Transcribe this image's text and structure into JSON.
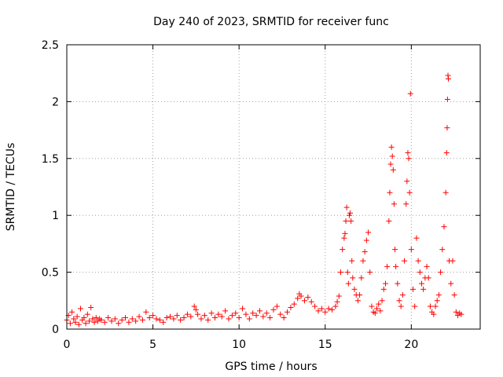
{
  "chart_data": {
    "type": "scatter",
    "title": "Day 240 of 2023, SRMTID for receiver func",
    "xlabel": "GPS time / hours",
    "ylabel": "SRMTID / TECUs",
    "xlim": [
      0,
      24
    ],
    "ylim": [
      0,
      2.5
    ],
    "xticks": [
      0,
      5,
      10,
      15,
      20
    ],
    "xtick_labels": [
      "0",
      "5",
      "10",
      "15",
      "20"
    ],
    "yticks": [
      0,
      0.5,
      1,
      1.5,
      2,
      2.5
    ],
    "ytick_labels": [
      "0",
      "0.5",
      "1",
      "1.5",
      "2",
      "2.5"
    ],
    "grid": true,
    "marker": "plus",
    "series": [
      {
        "name": "SRMTID",
        "color": "#ff0000",
        "points": [
          [
            0.0,
            0.08
          ],
          [
            0.1,
            0.12
          ],
          [
            0.2,
            0.05
          ],
          [
            0.3,
            0.15
          ],
          [
            0.4,
            0.09
          ],
          [
            0.5,
            0.06
          ],
          [
            0.6,
            0.11
          ],
          [
            0.7,
            0.04
          ],
          [
            0.8,
            0.18
          ],
          [
            0.9,
            0.08
          ],
          [
            1.0,
            0.1
          ],
          [
            1.1,
            0.05
          ],
          [
            1.2,
            0.13
          ],
          [
            1.3,
            0.07
          ],
          [
            1.4,
            0.19
          ],
          [
            1.5,
            0.09
          ],
          [
            1.6,
            0.06
          ],
          [
            1.7,
            0.1
          ],
          [
            1.8,
            0.07
          ],
          [
            1.9,
            0.09
          ],
          [
            2.0,
            0.08
          ],
          [
            2.2,
            0.06
          ],
          [
            2.4,
            0.1
          ],
          [
            2.6,
            0.07
          ],
          [
            2.8,
            0.09
          ],
          [
            3.0,
            0.05
          ],
          [
            3.2,
            0.08
          ],
          [
            3.4,
            0.1
          ],
          [
            3.6,
            0.06
          ],
          [
            3.8,
            0.09
          ],
          [
            4.0,
            0.07
          ],
          [
            4.2,
            0.11
          ],
          [
            4.4,
            0.08
          ],
          [
            4.6,
            0.15
          ],
          [
            4.8,
            0.1
          ],
          [
            5.0,
            0.12
          ],
          [
            5.2,
            0.09
          ],
          [
            5.4,
            0.08
          ],
          [
            5.6,
            0.06
          ],
          [
            5.8,
            0.1
          ],
          [
            6.0,
            0.11
          ],
          [
            6.2,
            0.09
          ],
          [
            6.4,
            0.12
          ],
          [
            6.6,
            0.08
          ],
          [
            6.8,
            0.1
          ],
          [
            7.0,
            0.13
          ],
          [
            7.2,
            0.11
          ],
          [
            7.4,
            0.2
          ],
          [
            7.5,
            0.17
          ],
          [
            7.6,
            0.13
          ],
          [
            7.8,
            0.09
          ],
          [
            8.0,
            0.12
          ],
          [
            8.2,
            0.08
          ],
          [
            8.4,
            0.14
          ],
          [
            8.6,
            0.1
          ],
          [
            8.8,
            0.13
          ],
          [
            9.0,
            0.11
          ],
          [
            9.2,
            0.16
          ],
          [
            9.4,
            0.09
          ],
          [
            9.6,
            0.12
          ],
          [
            9.8,
            0.14
          ],
          [
            10.0,
            0.1
          ],
          [
            10.2,
            0.18
          ],
          [
            10.4,
            0.13
          ],
          [
            10.6,
            0.09
          ],
          [
            10.8,
            0.14
          ],
          [
            11.0,
            0.12
          ],
          [
            11.2,
            0.16
          ],
          [
            11.4,
            0.11
          ],
          [
            11.6,
            0.14
          ],
          [
            11.8,
            0.1
          ],
          [
            12.0,
            0.17
          ],
          [
            12.2,
            0.2
          ],
          [
            12.4,
            0.13
          ],
          [
            12.6,
            0.1
          ],
          [
            12.8,
            0.15
          ],
          [
            13.0,
            0.19
          ],
          [
            13.2,
            0.22
          ],
          [
            13.4,
            0.27
          ],
          [
            13.5,
            0.31
          ],
          [
            13.6,
            0.29
          ],
          [
            13.8,
            0.25
          ],
          [
            14.0,
            0.28
          ],
          [
            14.2,
            0.24
          ],
          [
            14.4,
            0.2
          ],
          [
            14.6,
            0.16
          ],
          [
            14.8,
            0.18
          ],
          [
            15.0,
            0.15
          ],
          [
            15.2,
            0.18
          ],
          [
            15.4,
            0.17
          ],
          [
            15.6,
            0.2
          ],
          [
            15.7,
            0.24
          ],
          [
            15.8,
            0.29
          ],
          [
            15.9,
            0.5
          ],
          [
            16.0,
            0.7
          ],
          [
            16.1,
            0.8
          ],
          [
            16.15,
            0.84
          ],
          [
            16.2,
            0.95
          ],
          [
            16.25,
            1.07
          ],
          [
            16.3,
            0.5
          ],
          [
            16.35,
            0.4
          ],
          [
            16.4,
            1.0
          ],
          [
            16.45,
            1.02
          ],
          [
            16.5,
            0.95
          ],
          [
            16.55,
            0.6
          ],
          [
            16.6,
            0.45
          ],
          [
            16.7,
            0.35
          ],
          [
            16.8,
            0.3
          ],
          [
            16.9,
            0.25
          ],
          [
            17.0,
            0.3
          ],
          [
            17.1,
            0.45
          ],
          [
            17.2,
            0.6
          ],
          [
            17.3,
            0.68
          ],
          [
            17.4,
            0.78
          ],
          [
            17.5,
            0.85
          ],
          [
            17.6,
            0.5
          ],
          [
            17.7,
            0.2
          ],
          [
            17.8,
            0.15
          ],
          [
            17.9,
            0.14
          ],
          [
            18.0,
            0.18
          ],
          [
            18.1,
            0.22
          ],
          [
            18.2,
            0.16
          ],
          [
            18.3,
            0.25
          ],
          [
            18.4,
            0.35
          ],
          [
            18.5,
            0.4
          ],
          [
            18.6,
            0.55
          ],
          [
            18.7,
            0.95
          ],
          [
            18.75,
            1.2
          ],
          [
            18.8,
            1.45
          ],
          [
            18.85,
            1.6
          ],
          [
            18.9,
            1.52
          ],
          [
            18.95,
            1.4
          ],
          [
            19.0,
            1.1
          ],
          [
            19.05,
            0.7
          ],
          [
            19.1,
            0.55
          ],
          [
            19.2,
            0.4
          ],
          [
            19.3,
            0.25
          ],
          [
            19.4,
            0.2
          ],
          [
            19.5,
            0.3
          ],
          [
            19.6,
            0.6
          ],
          [
            19.7,
            1.1
          ],
          [
            19.75,
            1.3
          ],
          [
            19.8,
            1.55
          ],
          [
            19.85,
            1.5
          ],
          [
            19.9,
            1.2
          ],
          [
            19.95,
            2.07
          ],
          [
            20.0,
            0.7
          ],
          [
            20.1,
            0.35
          ],
          [
            20.2,
            0.2
          ],
          [
            20.3,
            0.8
          ],
          [
            20.4,
            0.6
          ],
          [
            20.5,
            0.5
          ],
          [
            20.6,
            0.4
          ],
          [
            20.7,
            0.35
          ],
          [
            20.8,
            0.45
          ],
          [
            20.9,
            0.55
          ],
          [
            21.0,
            0.45
          ],
          [
            21.1,
            0.2
          ],
          [
            21.2,
            0.15
          ],
          [
            21.3,
            0.13
          ],
          [
            21.4,
            0.2
          ],
          [
            21.5,
            0.25
          ],
          [
            21.6,
            0.3
          ],
          [
            21.7,
            0.5
          ],
          [
            21.8,
            0.7
          ],
          [
            21.9,
            0.9
          ],
          [
            22.0,
            1.2
          ],
          [
            22.05,
            1.55
          ],
          [
            22.08,
            1.77
          ],
          [
            22.1,
            2.02
          ],
          [
            22.13,
            2.23
          ],
          [
            22.15,
            2.2
          ],
          [
            22.2,
            0.6
          ],
          [
            22.3,
            0.4
          ],
          [
            22.4,
            0.6
          ],
          [
            22.5,
            0.3
          ],
          [
            22.6,
            0.15
          ],
          [
            22.7,
            0.12
          ],
          [
            22.8,
            0.14
          ],
          [
            22.9,
            0.13
          ]
        ]
      }
    ]
  }
}
